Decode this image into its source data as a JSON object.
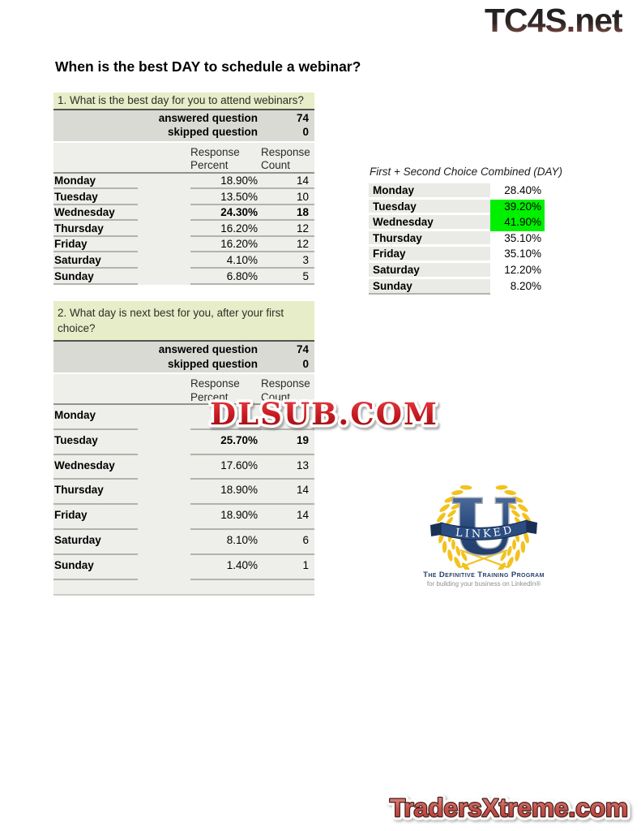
{
  "header": {
    "tc4s_logo": "TC4S.net"
  },
  "page_title": "When is the best DAY to schedule a webinar?",
  "q1_table": {
    "question": "1. What is the best day for you to attend webinars?",
    "answered_label": "answered question",
    "answered_value": "74",
    "skipped_label": "skipped question",
    "skipped_value": "0",
    "col_response": "Response",
    "col_percent": "Percent",
    "col_count": "Count",
    "rows": [
      {
        "day": "Monday",
        "percent": "18.90%",
        "count": "14"
      },
      {
        "day": "Tuesday",
        "percent": "13.50%",
        "count": "10"
      },
      {
        "day": "Wednesday",
        "percent": "24.30%",
        "count": "18"
      },
      {
        "day": "Thursday",
        "percent": "16.20%",
        "count": "12"
      },
      {
        "day": "Friday",
        "percent": "16.20%",
        "count": "12"
      },
      {
        "day": "Saturday",
        "percent": "4.10%",
        "count": "3"
      },
      {
        "day": "Sunday",
        "percent": "6.80%",
        "count": "5"
      }
    ]
  },
  "combined_table": {
    "title": "First + Second Choice Combined (DAY)",
    "rows": [
      {
        "day": "Monday",
        "percent": "28.40%"
      },
      {
        "day": "Tuesday",
        "percent": "39.20%"
      },
      {
        "day": "Wednesday",
        "percent": "41.90%"
      },
      {
        "day": "Thursday",
        "percent": "35.10%"
      },
      {
        "day": "Friday",
        "percent": "35.10%"
      },
      {
        "day": "Saturday",
        "percent": "12.20%"
      },
      {
        "day": "Sunday",
        "percent": "8.20%"
      }
    ]
  },
  "q2_table": {
    "question": "2. What day is next best for you, after your first choice?",
    "answered_label": "answered question",
    "answered_value": "74",
    "skipped_label": "skipped question",
    "skipped_value": "0",
    "col_response": "Response",
    "col_percent": "Percent",
    "col_count": "Count",
    "rows": [
      {
        "day": "Monday",
        "percent": "",
        "count": ""
      },
      {
        "day": "Tuesday",
        "percent": "25.70%",
        "count": "19"
      },
      {
        "day": "Wednesday",
        "percent": "17.60%",
        "count": "13"
      },
      {
        "day": "Thursday",
        "percent": "18.90%",
        "count": "14"
      },
      {
        "day": "Friday",
        "percent": "18.90%",
        "count": "14"
      },
      {
        "day": "Saturday",
        "percent": "8.10%",
        "count": "6"
      },
      {
        "day": "Sunday",
        "percent": "1.40%",
        "count": "1"
      }
    ]
  },
  "watermarks": {
    "dlsub": "DLSUB.COM",
    "tradersxtreme": "TradersXtreme.com"
  },
  "linkedu_logo": {
    "letter": "U",
    "ribbon": "LINKED",
    "tagline": "The Definitive Training Program",
    "subline": "for building your business on LinkedIn®"
  },
  "colors": {
    "header_green": "#e7edc8",
    "band_gray": "#dadad5",
    "row_gray": "#eeeeea",
    "combined_day_gray": "#eaeae6",
    "highlight_green": "#00f000",
    "rule_dark": "#55544e",
    "rule_mid": "#92928d",
    "rule_light": "#b3b3ae",
    "navy": "#27406b",
    "gold": "#f2c21e",
    "dlsub_red": "#c8191f",
    "traders_red": "#c75551"
  }
}
